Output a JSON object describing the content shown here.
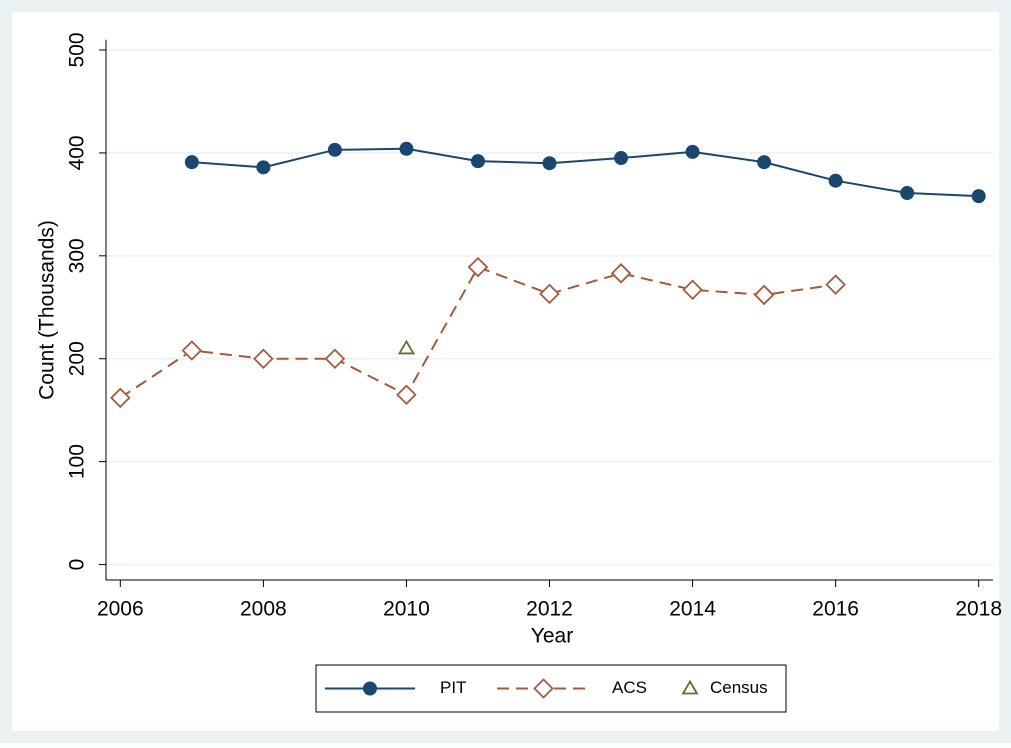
{
  "chart_data": {
    "type": "line",
    "x_label": "Year",
    "y_label": "Count (Thousands)",
    "x": [
      2006,
      2007,
      2008,
      2009,
      2010,
      2011,
      2012,
      2013,
      2014,
      2015,
      2016,
      2017,
      2018
    ],
    "series": [
      {
        "name": "PIT",
        "color": "#1a476f",
        "marker": "circle",
        "line": "solid",
        "values": [
          null,
          391,
          386,
          403,
          404,
          392,
          390,
          395,
          401,
          391,
          373,
          361,
          358
        ]
      },
      {
        "name": "ACS",
        "color": "#a55a3c",
        "marker": "diamond",
        "line": "dash",
        "values": [
          162,
          208,
          200,
          200,
          165,
          289,
          263,
          283,
          267,
          262,
          272,
          null,
          null
        ]
      },
      {
        "name": "Census",
        "color": "#55752f",
        "marker": "triangle",
        "line": "none",
        "values": [
          null,
          null,
          null,
          null,
          210,
          null,
          null,
          null,
          null,
          null,
          null,
          null,
          null
        ]
      }
    ],
    "xlim": [
      2005.8,
      2018.2
    ],
    "xticks": [
      2006,
      2008,
      2010,
      2012,
      2014,
      2016,
      2018
    ],
    "ylim": [
      -15,
      510
    ],
    "yticks": [
      0,
      100,
      200,
      300,
      400,
      500
    ],
    "grid": true,
    "legend": "bottom"
  }
}
